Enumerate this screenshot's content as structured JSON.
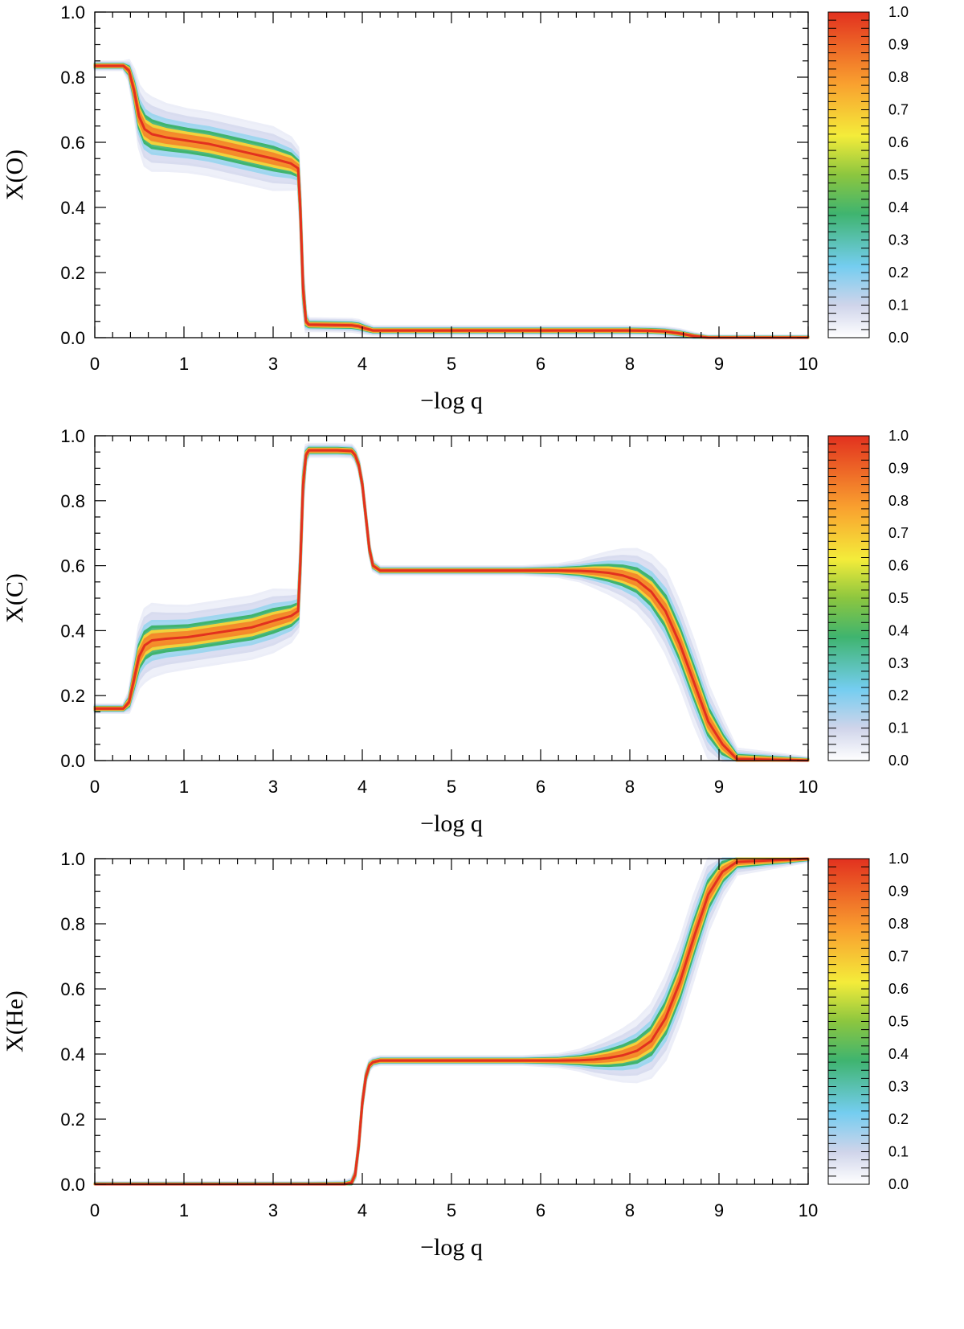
{
  "chart_data": [
    {
      "type": "line",
      "ylabel": "X(O)",
      "xlabel": "−log q",
      "xlim": [
        0,
        10
      ],
      "ylim": [
        0,
        1
      ],
      "x_ticks": [
        "0",
        "1",
        "3",
        "4",
        "5",
        "6",
        "8",
        "9",
        "10"
      ],
      "x_tick_values": [
        0,
        1.25,
        2.5,
        3.75,
        5,
        6.25,
        7.5,
        8.75,
        10
      ],
      "y_ticks": [
        "0.0",
        "0.2",
        "0.4",
        "0.6",
        "0.8",
        "1.0"
      ],
      "colorbar": {
        "ticks": [
          "0.0",
          "0.1",
          "0.2",
          "0.3",
          "0.4",
          "0.5",
          "0.6",
          "0.7",
          "0.8",
          "0.9",
          "1.0"
        ]
      },
      "series": [
        {
          "x": [
            0,
            0.4,
            0.48,
            0.55,
            0.62,
            0.7,
            0.8,
            1.0,
            1.3,
            1.6,
            1.9,
            2.2,
            2.5,
            2.75,
            2.85,
            2.88,
            2.92,
            2.96,
            3.0,
            3.6,
            3.7,
            3.8,
            3.9,
            5,
            6,
            7,
            7.5,
            7.8,
            8.0,
            8.2,
            8.4,
            8.6,
            10
          ],
          "y": [
            0.835,
            0.835,
            0.82,
            0.76,
            0.68,
            0.64,
            0.625,
            0.615,
            0.605,
            0.595,
            0.58,
            0.565,
            0.55,
            0.535,
            0.52,
            0.4,
            0.15,
            0.05,
            0.04,
            0.038,
            0.035,
            0.028,
            0.022,
            0.022,
            0.022,
            0.022,
            0.022,
            0.021,
            0.019,
            0.013,
            0.005,
            0.0,
            0.0
          ],
          "spread": [
            0.004,
            0.004,
            0.01,
            0.02,
            0.03,
            0.035,
            0.035,
            0.032,
            0.03,
            0.03,
            0.03,
            0.03,
            0.03,
            0.025,
            0.02,
            0.02,
            0.02,
            0.01,
            0.006,
            0.006,
            0.006,
            0.005,
            0.004,
            0.004,
            0.004,
            0.004,
            0.004,
            0.004,
            0.004,
            0.004,
            0.003,
            0.002,
            0.002
          ]
        }
      ]
    },
    {
      "type": "line",
      "ylabel": "X(C)",
      "xlabel": "−log q",
      "xlim": [
        0,
        10
      ],
      "ylim": [
        0,
        1
      ],
      "x_ticks": [
        "0",
        "1",
        "3",
        "4",
        "5",
        "6",
        "8",
        "9",
        "10"
      ],
      "x_tick_values": [
        0,
        1.25,
        2.5,
        3.75,
        5,
        6.25,
        7.5,
        8.75,
        10
      ],
      "y_ticks": [
        "0.0",
        "0.2",
        "0.4",
        "0.6",
        "0.8",
        "1.0"
      ],
      "colorbar": {
        "ticks": [
          "0.0",
          "0.1",
          "0.2",
          "0.3",
          "0.4",
          "0.5",
          "0.6",
          "0.7",
          "0.8",
          "0.9",
          "1.0"
        ]
      },
      "series": [
        {
          "x": [
            0,
            0.4,
            0.48,
            0.55,
            0.62,
            0.7,
            0.8,
            1.0,
            1.3,
            1.6,
            1.9,
            2.2,
            2.5,
            2.75,
            2.85,
            2.88,
            2.92,
            2.96,
            3.0,
            3.4,
            3.6,
            3.65,
            3.7,
            3.75,
            3.8,
            3.85,
            3.9,
            4.0,
            5,
            6,
            6.5,
            6.8,
            7.0,
            7.2,
            7.4,
            7.6,
            7.8,
            8.0,
            8.2,
            8.4,
            8.6,
            8.8,
            9.0,
            10
          ],
          "y": [
            0.16,
            0.16,
            0.18,
            0.25,
            0.32,
            0.355,
            0.37,
            0.375,
            0.38,
            0.39,
            0.4,
            0.41,
            0.43,
            0.445,
            0.46,
            0.6,
            0.85,
            0.94,
            0.955,
            0.955,
            0.953,
            0.94,
            0.91,
            0.85,
            0.75,
            0.65,
            0.6,
            0.585,
            0.585,
            0.585,
            0.585,
            0.584,
            0.582,
            0.578,
            0.57,
            0.555,
            0.52,
            0.46,
            0.36,
            0.24,
            0.12,
            0.05,
            0.005,
            0.0
          ],
          "spread": [
            0.004,
            0.004,
            0.01,
            0.02,
            0.03,
            0.035,
            0.035,
            0.032,
            0.03,
            0.03,
            0.03,
            0.03,
            0.03,
            0.025,
            0.02,
            0.02,
            0.02,
            0.01,
            0.006,
            0.006,
            0.006,
            0.006,
            0.006,
            0.006,
            0.006,
            0.006,
            0.005,
            0.004,
            0.004,
            0.004,
            0.006,
            0.01,
            0.015,
            0.02,
            0.025,
            0.03,
            0.035,
            0.04,
            0.04,
            0.04,
            0.035,
            0.025,
            0.01,
            0.003
          ]
        }
      ]
    },
    {
      "type": "line",
      "ylabel": "X(He)",
      "xlabel": "−log q",
      "xlim": [
        0,
        10
      ],
      "ylim": [
        0,
        1
      ],
      "x_ticks": [
        "0",
        "1",
        "3",
        "4",
        "5",
        "6",
        "8",
        "9",
        "10"
      ],
      "x_tick_values": [
        0,
        1.25,
        2.5,
        3.75,
        5,
        6.25,
        7.5,
        8.75,
        10
      ],
      "y_ticks": [
        "0.0",
        "0.2",
        "0.4",
        "0.6",
        "0.8",
        "1.0"
      ],
      "colorbar": {
        "ticks": [
          "0.0",
          "0.1",
          "0.2",
          "0.3",
          "0.4",
          "0.5",
          "0.6",
          "0.7",
          "0.8",
          "0.9",
          "1.0"
        ]
      },
      "series": [
        {
          "x": [
            0,
            3.0,
            3.5,
            3.6,
            3.65,
            3.7,
            3.75,
            3.8,
            3.85,
            3.9,
            4.0,
            5,
            6,
            6.5,
            6.8,
            7.0,
            7.2,
            7.4,
            7.6,
            7.8,
            8.0,
            8.2,
            8.4,
            8.6,
            8.8,
            9.0,
            10
          ],
          "y": [
            0.0,
            0.0,
            0.0,
            0.005,
            0.03,
            0.12,
            0.25,
            0.33,
            0.365,
            0.375,
            0.38,
            0.38,
            0.38,
            0.38,
            0.381,
            0.383,
            0.388,
            0.396,
            0.41,
            0.44,
            0.51,
            0.62,
            0.76,
            0.89,
            0.96,
            0.99,
            1.0
          ],
          "spread": [
            0.002,
            0.002,
            0.003,
            0.004,
            0.005,
            0.006,
            0.006,
            0.006,
            0.005,
            0.004,
            0.004,
            0.004,
            0.004,
            0.006,
            0.01,
            0.015,
            0.02,
            0.025,
            0.03,
            0.035,
            0.04,
            0.04,
            0.04,
            0.035,
            0.025,
            0.012,
            0.003
          ]
        }
      ]
    }
  ]
}
